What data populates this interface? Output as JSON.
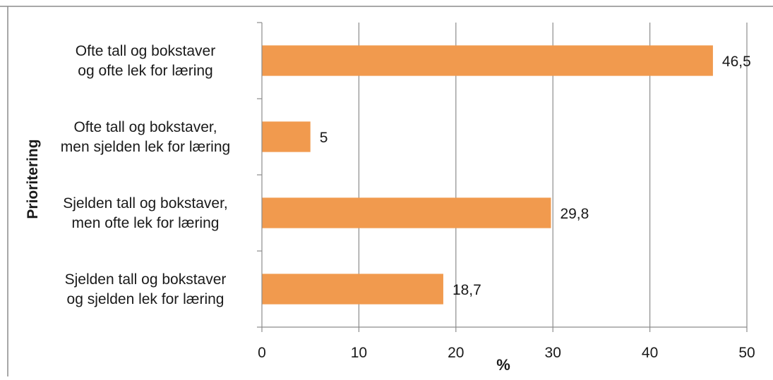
{
  "chart_data": {
    "type": "bar",
    "orientation": "horizontal",
    "categories": [
      [
        "Ofte tall og bokstaver",
        "og ofte lek for læring"
      ],
      [
        "Ofte tall og bokstaver,",
        "men sjelden lek for læring"
      ],
      [
        "Sjelden tall og bokstaver,",
        "men ofte lek for læring"
      ],
      [
        "Sjelden tall og bokstaver",
        "og sjelden lek for læring"
      ]
    ],
    "values": [
      46.5,
      5,
      29.8,
      18.7
    ],
    "value_labels": [
      "46,5",
      "5",
      "29,8",
      "18,7"
    ],
    "xlabel": "%",
    "ylabel": "Prioritering",
    "xlim": [
      0,
      50
    ],
    "xticks": [
      0,
      10,
      20,
      30,
      40,
      50
    ],
    "grid": "vertical",
    "legend": "none",
    "bar_color": "#F19A4E"
  }
}
